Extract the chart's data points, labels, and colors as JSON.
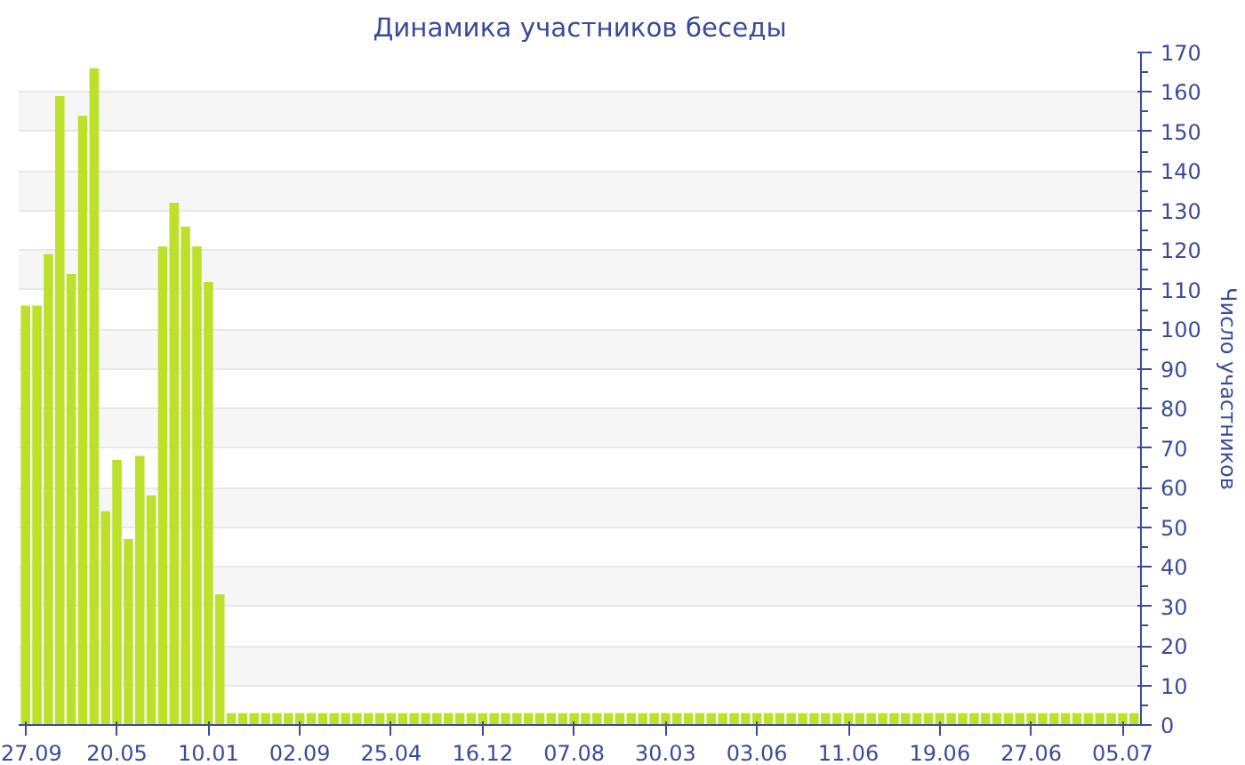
{
  "chart_data": {
    "type": "bar",
    "title": "Динамика участников беседы",
    "ylabel": "Число участников",
    "categories": [
      "27.09",
      null,
      null,
      null,
      null,
      null,
      null,
      null,
      "20.05",
      null,
      null,
      null,
      null,
      null,
      null,
      null,
      "10.01",
      null,
      null,
      null,
      null,
      null,
      null,
      null,
      "02.09",
      null,
      null,
      null,
      null,
      null,
      null,
      null,
      "25.04",
      null,
      null,
      null,
      null,
      null,
      null,
      null,
      "16.12",
      null,
      null,
      null,
      null,
      null,
      null,
      null,
      "07.08",
      null,
      null,
      null,
      null,
      null,
      null,
      null,
      "30.03",
      null,
      null,
      null,
      null,
      null,
      null,
      null,
      "03.06",
      null,
      null,
      null,
      null,
      null,
      null,
      null,
      "11.06",
      null,
      null,
      null,
      null,
      null,
      null,
      null,
      "19.06",
      null,
      null,
      null,
      null,
      null,
      null,
      null,
      "27.06",
      null,
      null,
      null,
      null,
      null,
      null,
      null,
      "05.07",
      null
    ],
    "values": [
      106,
      106,
      119,
      159,
      114,
      154,
      166,
      54,
      67,
      47,
      68,
      58,
      121,
      132,
      126,
      121,
      112,
      33,
      3,
      3,
      3,
      3,
      3,
      3,
      3,
      3,
      3,
      3,
      3,
      3,
      3,
      3,
      3,
      3,
      3,
      3,
      3,
      3,
      3,
      3,
      3,
      3,
      3,
      3,
      3,
      3,
      3,
      3,
      3,
      3,
      3,
      3,
      3,
      3,
      3,
      3,
      3,
      3,
      3,
      3,
      3,
      3,
      3,
      3,
      3,
      3,
      3,
      3,
      3,
      3,
      3,
      3,
      3,
      3,
      3,
      3,
      3,
      3,
      3,
      3,
      3,
      3,
      3,
      3,
      3,
      3,
      3,
      3,
      3,
      3,
      3,
      3,
      3,
      3,
      3,
      3,
      3,
      3
    ],
    "color": "#bde02a",
    "ylim": [
      0,
      170
    ],
    "yticks": [
      0,
      10,
      20,
      30,
      40,
      50,
      60,
      70,
      80,
      90,
      100,
      110,
      120,
      130,
      140,
      150,
      160,
      170
    ],
    "grid": "y"
  }
}
